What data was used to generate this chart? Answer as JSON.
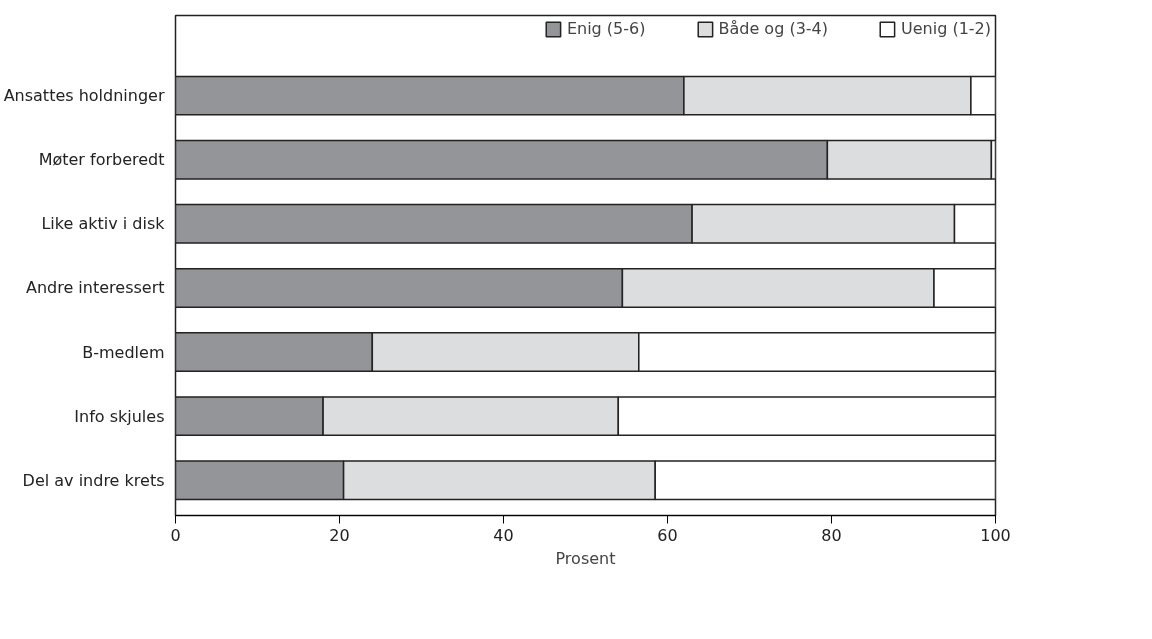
{
  "chart_data": {
    "type": "bar",
    "orientation": "horizontal",
    "stacked": true,
    "categories": [
      "Ansattes holdninger",
      "Møter forberedt",
      "Like aktiv i disk",
      "Andre interessert",
      "B-medlem",
      "Info skjules",
      "Del av indre krets"
    ],
    "series": [
      {
        "name": "Enig (5-6)",
        "color": "#939598",
        "values": [
          62,
          79.5,
          63,
          54.5,
          24,
          18,
          20.5
        ]
      },
      {
        "name": "Både og (3-4)",
        "color": "#dcdddf",
        "values": [
          35,
          20,
          32,
          38,
          32.5,
          36,
          38
        ]
      },
      {
        "name": "Uenig (1-2)",
        "color": "#ffffff",
        "values": [
          3,
          0.5,
          5,
          7.5,
          43.5,
          46,
          41.5
        ]
      }
    ],
    "xlim": [
      0,
      100
    ],
    "xticks": [
      0,
      20,
      40,
      60,
      80,
      100
    ],
    "xlabel": "Prosent",
    "grid": false,
    "legend": "top"
  }
}
